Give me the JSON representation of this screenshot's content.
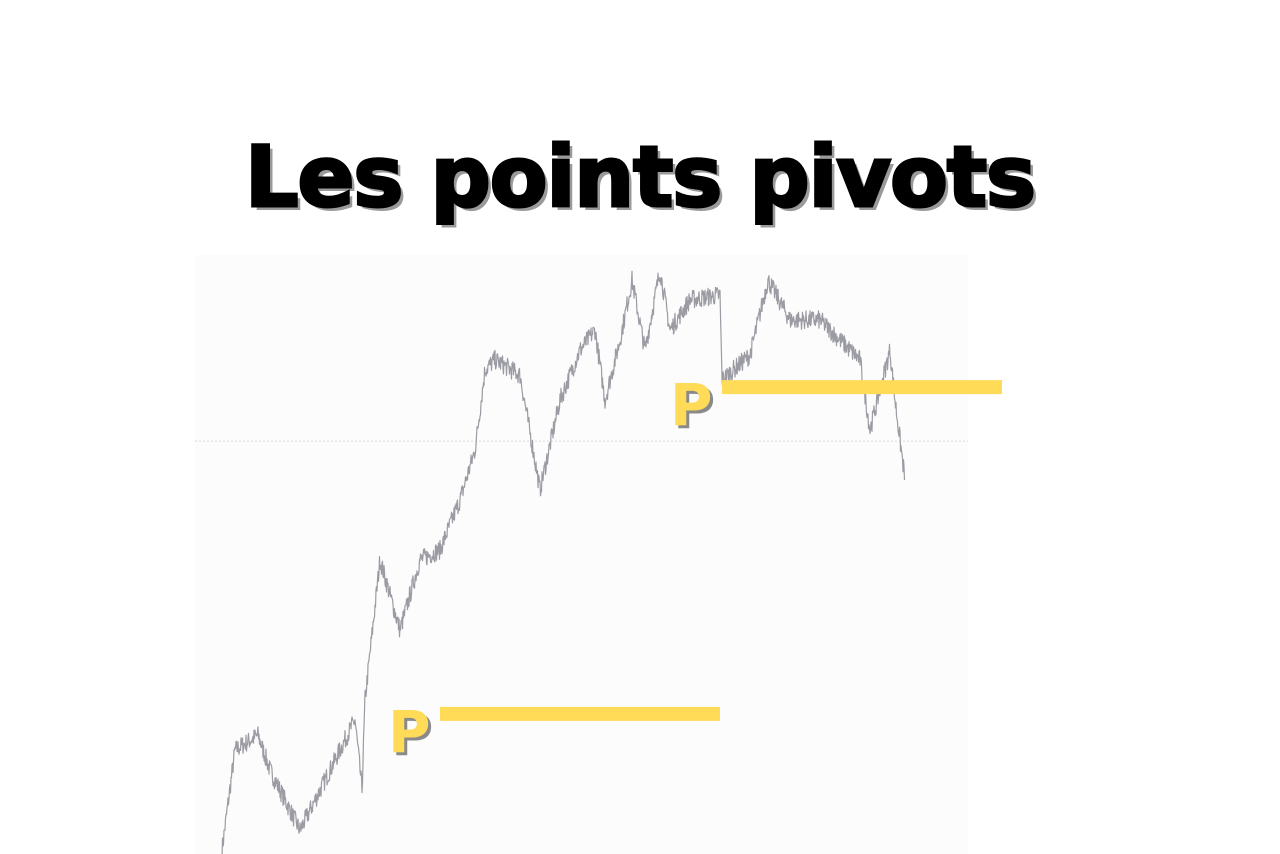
{
  "title": "Les points pivots",
  "chart_data": {
    "type": "line",
    "title": "Les points pivots",
    "xlabel": "",
    "ylabel": "",
    "axes_visible": false,
    "grid": false,
    "xlim": [
      0,
      780
    ],
    "ylim": [
      0,
      100
    ],
    "x": [
      0,
      13,
      36,
      48,
      78,
      108,
      133,
      140,
      143,
      158,
      178,
      198,
      218,
      238,
      253,
      263,
      273,
      298,
      318,
      338,
      358,
      373,
      383,
      398,
      410,
      423,
      438,
      448,
      468,
      498,
      500,
      528,
      546,
      568,
      598,
      618,
      638,
      648,
      668,
      673,
      683
    ],
    "values": [
      0.7,
      17.5,
      20,
      14.1,
      4,
      14.1,
      22.6,
      10.8,
      25.9,
      49.5,
      37.7,
      49.5,
      51.2,
      59.6,
      68,
      81.5,
      83.2,
      80.6,
      61.3,
      76.4,
      84.8,
      88.2,
      76.4,
      86.5,
      96.6,
      84.8,
      98.3,
      88.2,
      93.3,
      94.1,
      79.8,
      84,
      96.6,
      89.9,
      89.9,
      86.5,
      83.2,
      71.4,
      84.8,
      76.4,
      63
    ],
    "reference_line": {
      "value": 69.5,
      "style": "dotted",
      "color": "#d9d9d9"
    },
    "pivots": [
      {
        "label": "P",
        "value": 23.6,
        "x_start": 218,
        "x_end": 498
      },
      {
        "label": "P",
        "value": 78.6,
        "x_start": 500,
        "x_end": 780
      }
    ],
    "colors": {
      "price_line": "#9b9ba3",
      "pivot": "#FFDB58",
      "label_shadow": "#8a8a8a",
      "plot_background": "#fcfcfc"
    }
  }
}
